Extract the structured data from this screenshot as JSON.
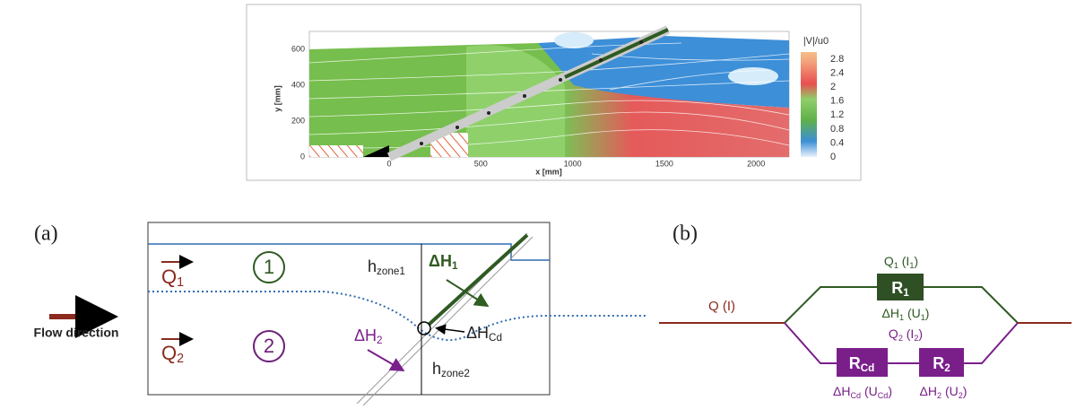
{
  "plot": {
    "y_label": "y [mm]",
    "x_label": "x [mm]",
    "y_ticks": [
      "0",
      "200",
      "400",
      "600"
    ],
    "x_ticks": [
      "0",
      "500",
      "1000",
      "1500",
      "2000"
    ],
    "colorbar_title": "|V|/u0",
    "colorbar_ticks": [
      "2.8",
      "2.4",
      "2",
      "1.6",
      "1.2",
      "0.8",
      "0.4",
      "0"
    ]
  },
  "panel_a": {
    "label": "(a)",
    "q1": [
      "Q",
      "1"
    ],
    "q2": [
      "Q",
      "2"
    ],
    "zone1": "1",
    "zone2": "2",
    "flow_direction": "Flow direction",
    "h_zone1": [
      "h",
      "zone1"
    ],
    "h_zone2": [
      "h",
      "zone2"
    ],
    "dh1": [
      "ΔH",
      "1"
    ],
    "dhcd": [
      "ΔH",
      "Cd"
    ],
    "dh2": [
      "ΔH",
      "2"
    ]
  },
  "panel_b": {
    "label": "(b)",
    "q": "Q (I)",
    "q1": [
      "Q",
      "1",
      " (I",
      "1",
      ")"
    ],
    "r1": [
      "R",
      "1"
    ],
    "dh1": [
      "ΔH",
      "1",
      " (U",
      "1",
      ")"
    ],
    "q2": [
      "Q",
      "2",
      " (I",
      "2",
      ")"
    ],
    "rcd": [
      "R",
      "Cd"
    ],
    "r2": [
      "R",
      "2"
    ],
    "dhcd": [
      "ΔH",
      "Cd",
      " (U",
      "Cd",
      ")"
    ],
    "dh2": [
      "ΔH",
      "2",
      " (U",
      "2",
      ")"
    ]
  }
}
